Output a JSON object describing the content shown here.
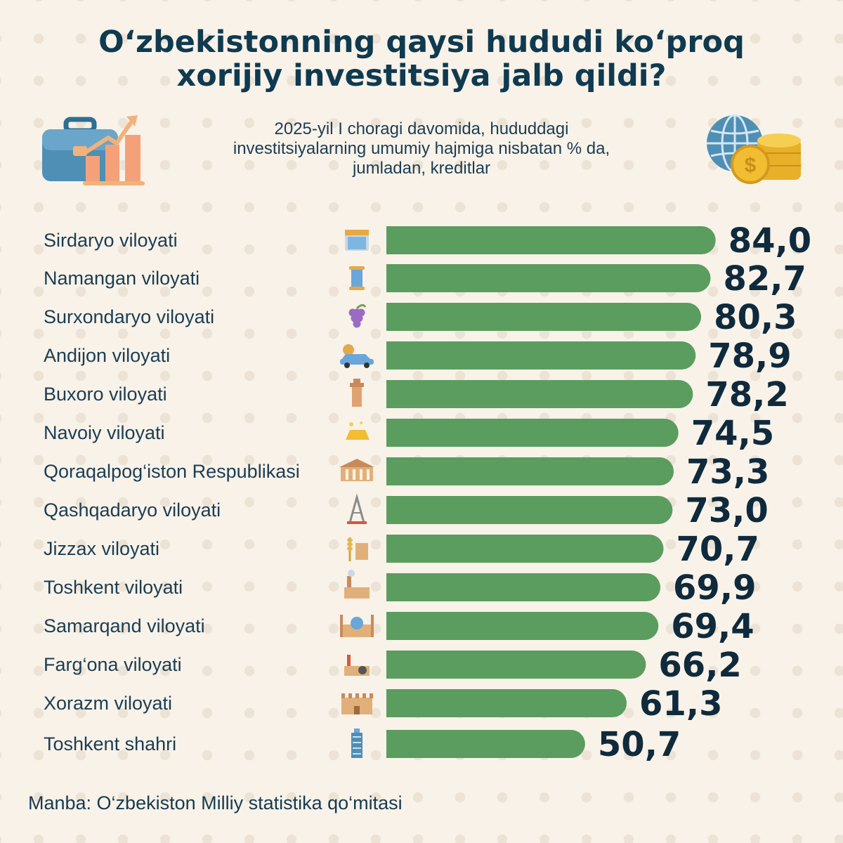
{
  "chart_data": {
    "type": "bar",
    "orientation": "horizontal",
    "title": "O‘zbekistonning qaysi hududi ko‘proq xorijiy investitsiya jalb qildi?",
    "title_lines": [
      "O‘zbekistonning qaysi hududi ko‘proq",
      "xorijiy investitsiya jalb qildi?"
    ],
    "subtitle_lines": [
      "2025-yil I choragi davomida, hududdagi",
      "investitsiyalarning umumiy hajmiga nisbatan % da,",
      "jumladan, kreditlar"
    ],
    "categories": [
      "Sirdaryo viloyati",
      "Namangan viloyati",
      "Surxondaryo viloyati",
      "Andijon viloyati",
      "Buxoro viloyati",
      "Navoiy viloyati",
      "Qoraqalpog‘iston Respublikasi",
      "Qashqadaryo viloyati",
      "Jizzax viloyati",
      "Toshkent viloyati",
      "Samarqand viloyati",
      "Farg‘ona viloyati",
      "Xorazm viloyati",
      "Toshkent shahri"
    ],
    "values": [
      84.0,
      82.7,
      80.3,
      78.9,
      78.2,
      74.5,
      73.3,
      73.0,
      70.7,
      69.9,
      69.4,
      66.2,
      61.3,
      50.7
    ],
    "value_labels": [
      "84,0",
      "82,7",
      "80,3",
      "78,9",
      "78,2",
      "74,5",
      "73,3",
      "73,0",
      "70,7",
      "69,9",
      "69,4",
      "66,2",
      "61,3",
      "50,7"
    ],
    "icons": [
      "dam-icon",
      "thread-spool-icon",
      "grapes-icon",
      "car-factory-icon",
      "minaret-icon",
      "gold-bar-icon",
      "museum-building-icon",
      "oil-derrick-icon",
      "wheat-factory-icon",
      "factory-icon",
      "mosque-icon",
      "industrial-plant-icon",
      "fortress-wall-icon",
      "skyscraper-icon"
    ],
    "bar_color": "#5a9d5f",
    "grid": false,
    "legend": "none"
  },
  "source": "Manba: O‘zbekiston Milliy statistika qo‘mitasi",
  "decor_icons": [
    "briefcase-growth-icon",
    "globe-coins-icon"
  ],
  "colors": {
    "title": "#0f3a50",
    "value_text": "#0f2a3c",
    "label_text": "#1c3d52",
    "background": "#f8f2e9"
  }
}
